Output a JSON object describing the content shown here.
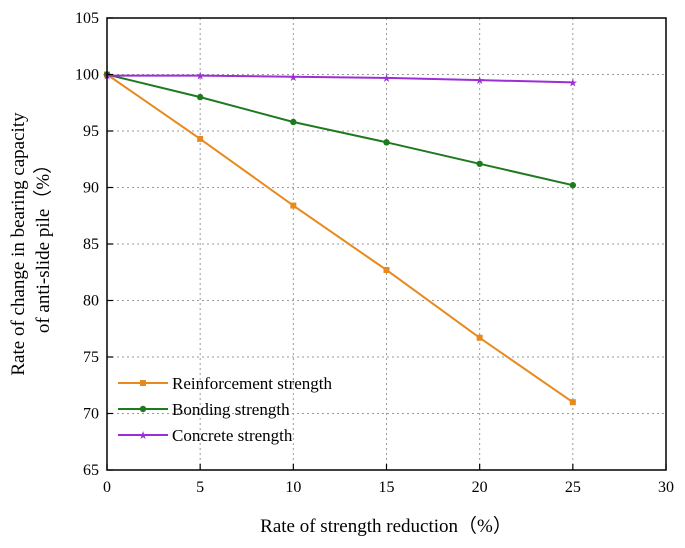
{
  "chart_data": {
    "type": "line",
    "xlabel": "Rate of strength reduction（%）",
    "ylabel_line1": "Rate of change in bearing capacity",
    "ylabel_line2": "of anti-slide pile（%）",
    "xlim": [
      0,
      30
    ],
    "ylim": [
      65,
      105
    ],
    "xticks": [
      "0",
      "5",
      "10",
      "15",
      "20",
      "25",
      "30"
    ],
    "yticks": [
      "65",
      "70",
      "75",
      "80",
      "85",
      "90",
      "95",
      "100",
      "105"
    ],
    "grid": true,
    "legend_position": "lower-left",
    "series": [
      {
        "name": "Reinforcement strength",
        "color": "#e8891e",
        "marker": "square",
        "x": [
          0,
          5,
          10,
          15,
          20,
          25
        ],
        "y": [
          100,
          94.3,
          88.4,
          82.7,
          76.7,
          71.0
        ]
      },
      {
        "name": "Bonding strength",
        "color": "#1f7a1f",
        "marker": "circle",
        "x": [
          0,
          5,
          10,
          15,
          20,
          25
        ],
        "y": [
          100,
          98.0,
          95.8,
          94.0,
          92.1,
          90.2
        ]
      },
      {
        "name": "Concrete strength",
        "color": "#9b2fd6",
        "marker": "star",
        "x": [
          0,
          5,
          10,
          15,
          20,
          25
        ],
        "y": [
          99.9,
          99.9,
          99.8,
          99.7,
          99.5,
          99.3
        ]
      }
    ]
  }
}
